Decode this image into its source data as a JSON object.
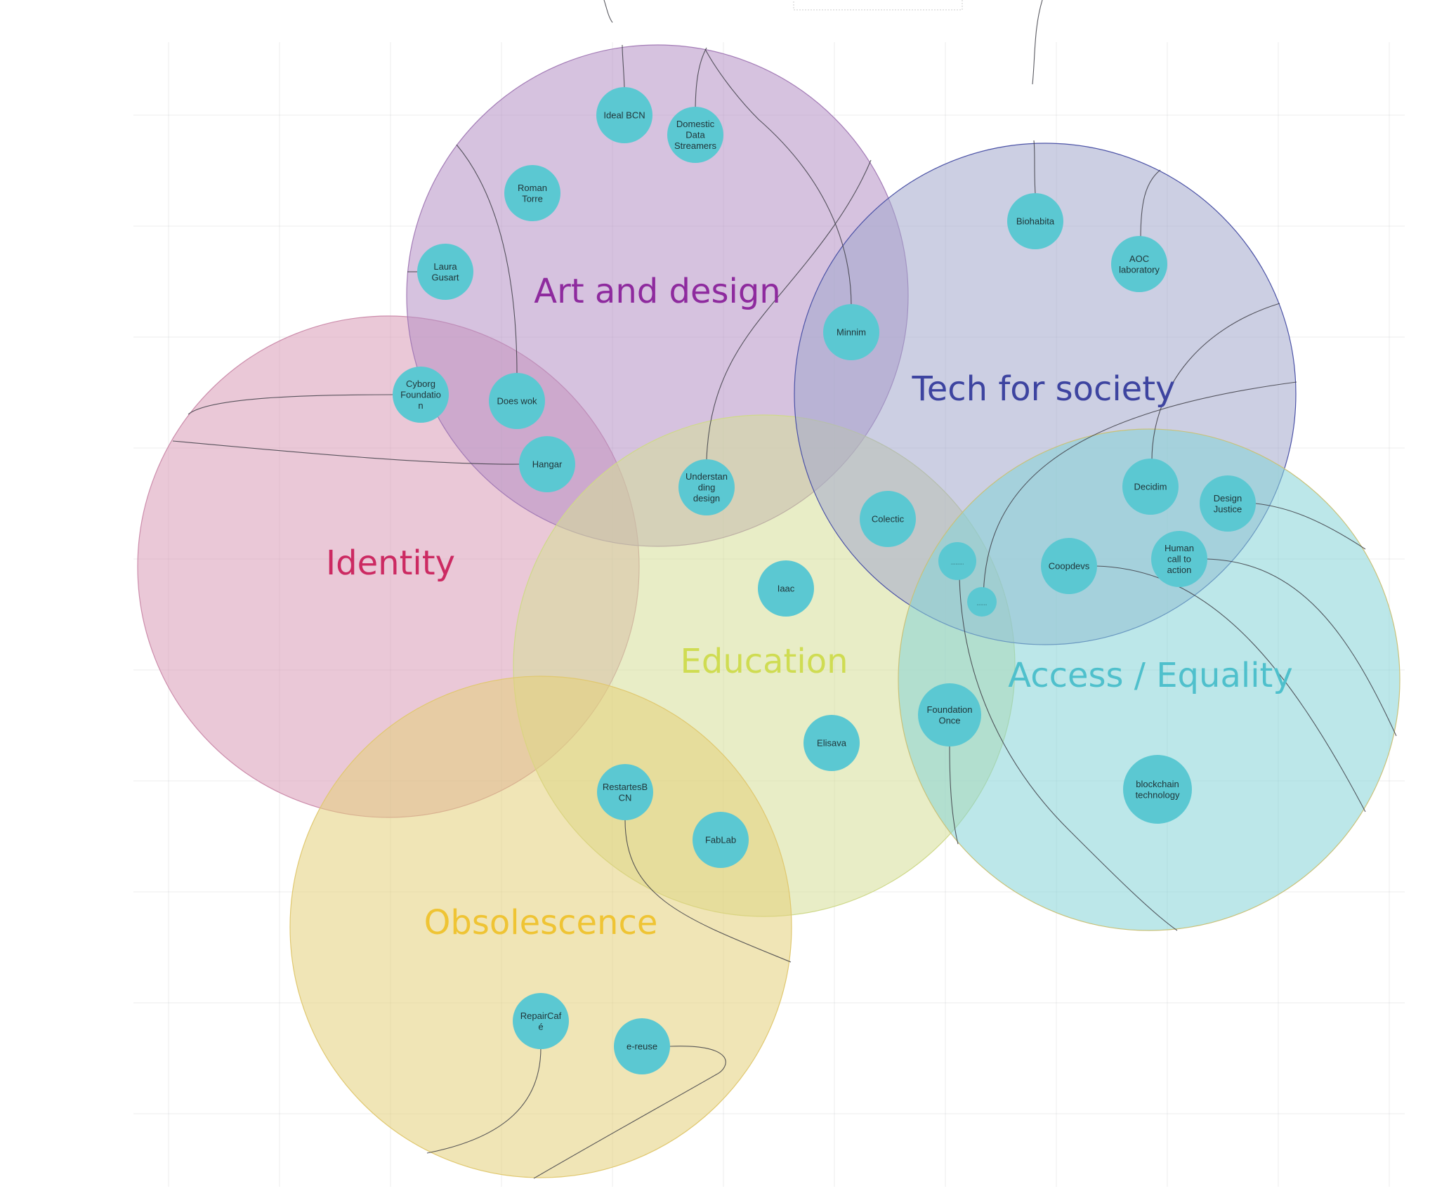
{
  "clusters": [
    {
      "id": "art",
      "title": "Art and design",
      "fill": "#b58fc4",
      "stroke": "#a37bb6",
      "text": "#8e2a9e"
    },
    {
      "id": "tech",
      "title": "Tech for society",
      "fill": "#a3a8cc",
      "stroke": "#4b52a6",
      "text": "#3d44a0"
    },
    {
      "id": "identity",
      "title": "Identity",
      "fill": "#d89ab7",
      "stroke": "#cc8cab",
      "text": "#cc2a62"
    },
    {
      "id": "education",
      "title": "Education",
      "fill": "#d6df98",
      "stroke": "#cfd98a",
      "text": "#cfdc52"
    },
    {
      "id": "access",
      "title": "Access / Equality",
      "fill": "#85d3d7",
      "stroke": "#c9c27a",
      "text": "#4fc0cc"
    },
    {
      "id": "obsolescence",
      "title": "Obsolescence",
      "fill": "#e4d07a",
      "stroke": "#e0c870",
      "text": "#efc434"
    }
  ],
  "nodes": [
    {
      "id": "ideal-bcn",
      "lines": [
        "Ideal BCN"
      ]
    },
    {
      "id": "domestic-data-streamers",
      "lines": [
        "Domestic",
        "Data",
        "Streamers"
      ]
    },
    {
      "id": "roman-torre",
      "lines": [
        "Roman",
        "Torre"
      ]
    },
    {
      "id": "laura-gusart",
      "lines": [
        "Laura",
        "Gusart"
      ]
    },
    {
      "id": "minnim",
      "lines": [
        "Minnim"
      ]
    },
    {
      "id": "cyborg-foundation",
      "lines": [
        "Cyborg",
        "Foundatio",
        "n"
      ]
    },
    {
      "id": "does-wok",
      "lines": [
        "Does wok"
      ]
    },
    {
      "id": "hangar",
      "lines": [
        "Hangar"
      ]
    },
    {
      "id": "understanding-design",
      "lines": [
        "Understan",
        "ding",
        "design"
      ]
    },
    {
      "id": "biohabita",
      "lines": [
        "Biohabita"
      ]
    },
    {
      "id": "aoc-laboratory",
      "lines": [
        "AOC",
        "laboratory"
      ]
    },
    {
      "id": "decidim",
      "lines": [
        "Decidim"
      ]
    },
    {
      "id": "design-justice",
      "lines": [
        "Design",
        "Justice"
      ]
    },
    {
      "id": "colectic",
      "lines": [
        "Colectic"
      ]
    },
    {
      "id": "coopdevs",
      "lines": [
        "Coopdevs"
      ]
    },
    {
      "id": "human-call-to-action",
      "lines": [
        "Human",
        "call to",
        "action"
      ]
    },
    {
      "id": "small-node-a",
      "lines": [
        "..........."
      ]
    },
    {
      "id": "small-node-b",
      "lines": [
        "........."
      ]
    },
    {
      "id": "iaac",
      "lines": [
        "Iaac"
      ]
    },
    {
      "id": "elisava",
      "lines": [
        "Elisava"
      ]
    },
    {
      "id": "foundation-once",
      "lines": [
        "Foundation",
        "Once"
      ]
    },
    {
      "id": "blockchain-technology",
      "lines": [
        "blockchain",
        "technology"
      ]
    },
    {
      "id": "restartes-bcn",
      "lines": [
        "RestartesB",
        "CN"
      ]
    },
    {
      "id": "fablab",
      "lines": [
        "FabLab"
      ]
    },
    {
      "id": "repaircafe",
      "lines": [
        "RepairCaf",
        "é"
      ]
    },
    {
      "id": "e-reuse",
      "lines": [
        "e-reuse"
      ]
    }
  ]
}
